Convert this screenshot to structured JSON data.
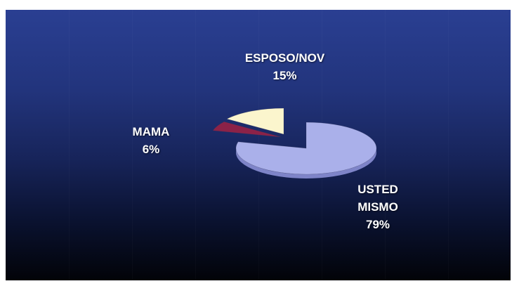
{
  "chart_data": {
    "type": "pie",
    "three_d": true,
    "exploded": true,
    "slices": [
      {
        "label": "USTED MISMO",
        "label_lines": [
          "USTED",
          "MISMO"
        ],
        "value": 79,
        "value_label": "79%",
        "color": "#aab0ea",
        "side_color": "#7e84c8"
      },
      {
        "label": "MAMA",
        "label_lines": [
          "MAMA"
        ],
        "value": 6,
        "value_label": "6%",
        "color": "#8c2248",
        "side_color": "#5e1530"
      },
      {
        "label": "ESPOSO/NOV",
        "label_lines": [
          "ESPOSO/NOV"
        ],
        "value": 15,
        "value_label": "15%",
        "color": "#fbf5cd",
        "side_color": "#cfc89a"
      }
    ],
    "title": "",
    "legend": "none",
    "background": "#22347c"
  }
}
